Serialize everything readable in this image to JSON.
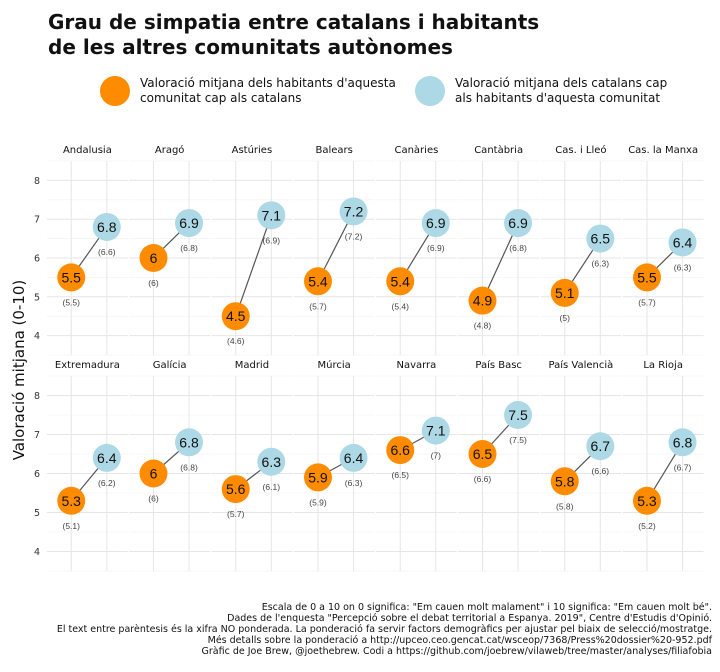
{
  "header": {
    "title": "Grau de simpatia entre catalans i habitants\nde les altres comunitats autònomes"
  },
  "legend": [
    {
      "label": "Valoració mitjana dels habitants d'aquesta\ncomunitat cap als catalans",
      "color": "#ff8c00"
    },
    {
      "label": "Valoració mitjana dels catalans cap\nals habitants d'aquesta comunitat",
      "color": "#add8e6"
    }
  ],
  "footer": {
    "lines": [
      "Escala de 0 a 10 on 0 significa: \"Em cauen molt malament\" i 10 significa: \"Em cauen molt bé\".",
      "Dades de l'enquesta \"Percepció sobre el debat territorial a Espanya. 2019\", Centre d'Estudis d'Opinió.",
      "El text entre parèntesis és la xifra NO ponderada. La ponderació fa servir factors demogràfics per ajustar pel biaix de selecció/mostratge.",
      "Més detalls sobre la ponderació a http://upceo.ceo.gencat.cat/wsceop/7368/Press%20dossier%20-952.pdf",
      "Gràfic de Joe Brew, @joethebrew. Codi a https://github.com/joebrew/vilaweb/tree/master/analyses/filiafobia"
    ]
  },
  "chart_data": {
    "type": "scatter",
    "ylabel": "Valoració mitjana (0-10)",
    "ylim": [
      3.5,
      8.5
    ],
    "yticks": [
      "4",
      "5",
      "6",
      "7",
      "8"
    ],
    "grid": true,
    "series_names": [
      "Valoració mitjana dels habitants d'aquesta comunitat cap als catalans",
      "Valoració mitjana dels catalans cap als habitants d'aquesta comunitat"
    ],
    "series_colors": [
      "#ff8c00",
      "#add8e6"
    ],
    "panels": [
      {
        "name": "Andalusia",
        "to_cat": "5.5",
        "to_cat_unw": "(5.5)",
        "from_cat": "6.8",
        "from_cat_unw": "(6.6)",
        "to_cat_value": 5.5,
        "from_cat_value": 6.8
      },
      {
        "name": "Aragó",
        "to_cat": "6",
        "to_cat_unw": "(6)",
        "from_cat": "6.9",
        "from_cat_unw": "(6.8)",
        "to_cat_value": 6.0,
        "from_cat_value": 6.9
      },
      {
        "name": "Astúries",
        "to_cat": "4.5",
        "to_cat_unw": "(4.6)",
        "from_cat": "7.1",
        "from_cat_unw": "(6.9)",
        "to_cat_value": 4.5,
        "from_cat_value": 7.1
      },
      {
        "name": "Balears",
        "to_cat": "5.4",
        "to_cat_unw": "(5.7)",
        "from_cat": "7.2",
        "from_cat_unw": "(7.2)",
        "to_cat_value": 5.4,
        "from_cat_value": 7.2
      },
      {
        "name": "Canàries",
        "to_cat": "5.4",
        "to_cat_unw": "(5.4)",
        "from_cat": "6.9",
        "from_cat_unw": "(6.9)",
        "to_cat_value": 5.4,
        "from_cat_value": 6.9
      },
      {
        "name": "Cantàbria",
        "to_cat": "4.9",
        "to_cat_unw": "(4.8)",
        "from_cat": "6.9",
        "from_cat_unw": "(6.8)",
        "to_cat_value": 4.9,
        "from_cat_value": 6.9
      },
      {
        "name": "Cas. i Lleó",
        "to_cat": "5.1",
        "to_cat_unw": "(5)",
        "from_cat": "6.5",
        "from_cat_unw": "(6.3)",
        "to_cat_value": 5.1,
        "from_cat_value": 6.5
      },
      {
        "name": "Cas. la Manxa",
        "to_cat": "5.5",
        "to_cat_unw": "(5.7)",
        "from_cat": "6.4",
        "from_cat_unw": "(6.3)",
        "to_cat_value": 5.5,
        "from_cat_value": 6.4
      },
      {
        "name": "Extremadura",
        "to_cat": "5.3",
        "to_cat_unw": "(5.1)",
        "from_cat": "6.4",
        "from_cat_unw": "(6.2)",
        "to_cat_value": 5.3,
        "from_cat_value": 6.4
      },
      {
        "name": "Galícia",
        "to_cat": "6",
        "to_cat_unw": "(6)",
        "from_cat": "6.8",
        "from_cat_unw": "(6.8)",
        "to_cat_value": 6.0,
        "from_cat_value": 6.8
      },
      {
        "name": "Madrid",
        "to_cat": "5.6",
        "to_cat_unw": "(5.7)",
        "from_cat": "6.3",
        "from_cat_unw": "(6.1)",
        "to_cat_value": 5.6,
        "from_cat_value": 6.3
      },
      {
        "name": "Múrcia",
        "to_cat": "5.9",
        "to_cat_unw": "(5.9)",
        "from_cat": "6.4",
        "from_cat_unw": "(6.3)",
        "to_cat_value": 5.9,
        "from_cat_value": 6.4
      },
      {
        "name": "Navarra",
        "to_cat": "6.6",
        "to_cat_unw": "(6.5)",
        "from_cat": "7.1",
        "from_cat_unw": "(7)",
        "to_cat_value": 6.6,
        "from_cat_value": 7.1
      },
      {
        "name": "País Basc",
        "to_cat": "6.5",
        "to_cat_unw": "(6.6)",
        "from_cat": "7.5",
        "from_cat_unw": "(7.5)",
        "to_cat_value": 6.5,
        "from_cat_value": 7.5
      },
      {
        "name": "País Valencià",
        "to_cat": "5.8",
        "to_cat_unw": "(5.8)",
        "from_cat": "6.7",
        "from_cat_unw": "(6.6)",
        "to_cat_value": 5.8,
        "from_cat_value": 6.7
      },
      {
        "name": "La Rioja",
        "to_cat": "5.3",
        "to_cat_unw": "(5.2)",
        "from_cat": "6.8",
        "from_cat_unw": "(6.7)",
        "to_cat_value": 5.3,
        "from_cat_value": 6.8
      }
    ]
  }
}
